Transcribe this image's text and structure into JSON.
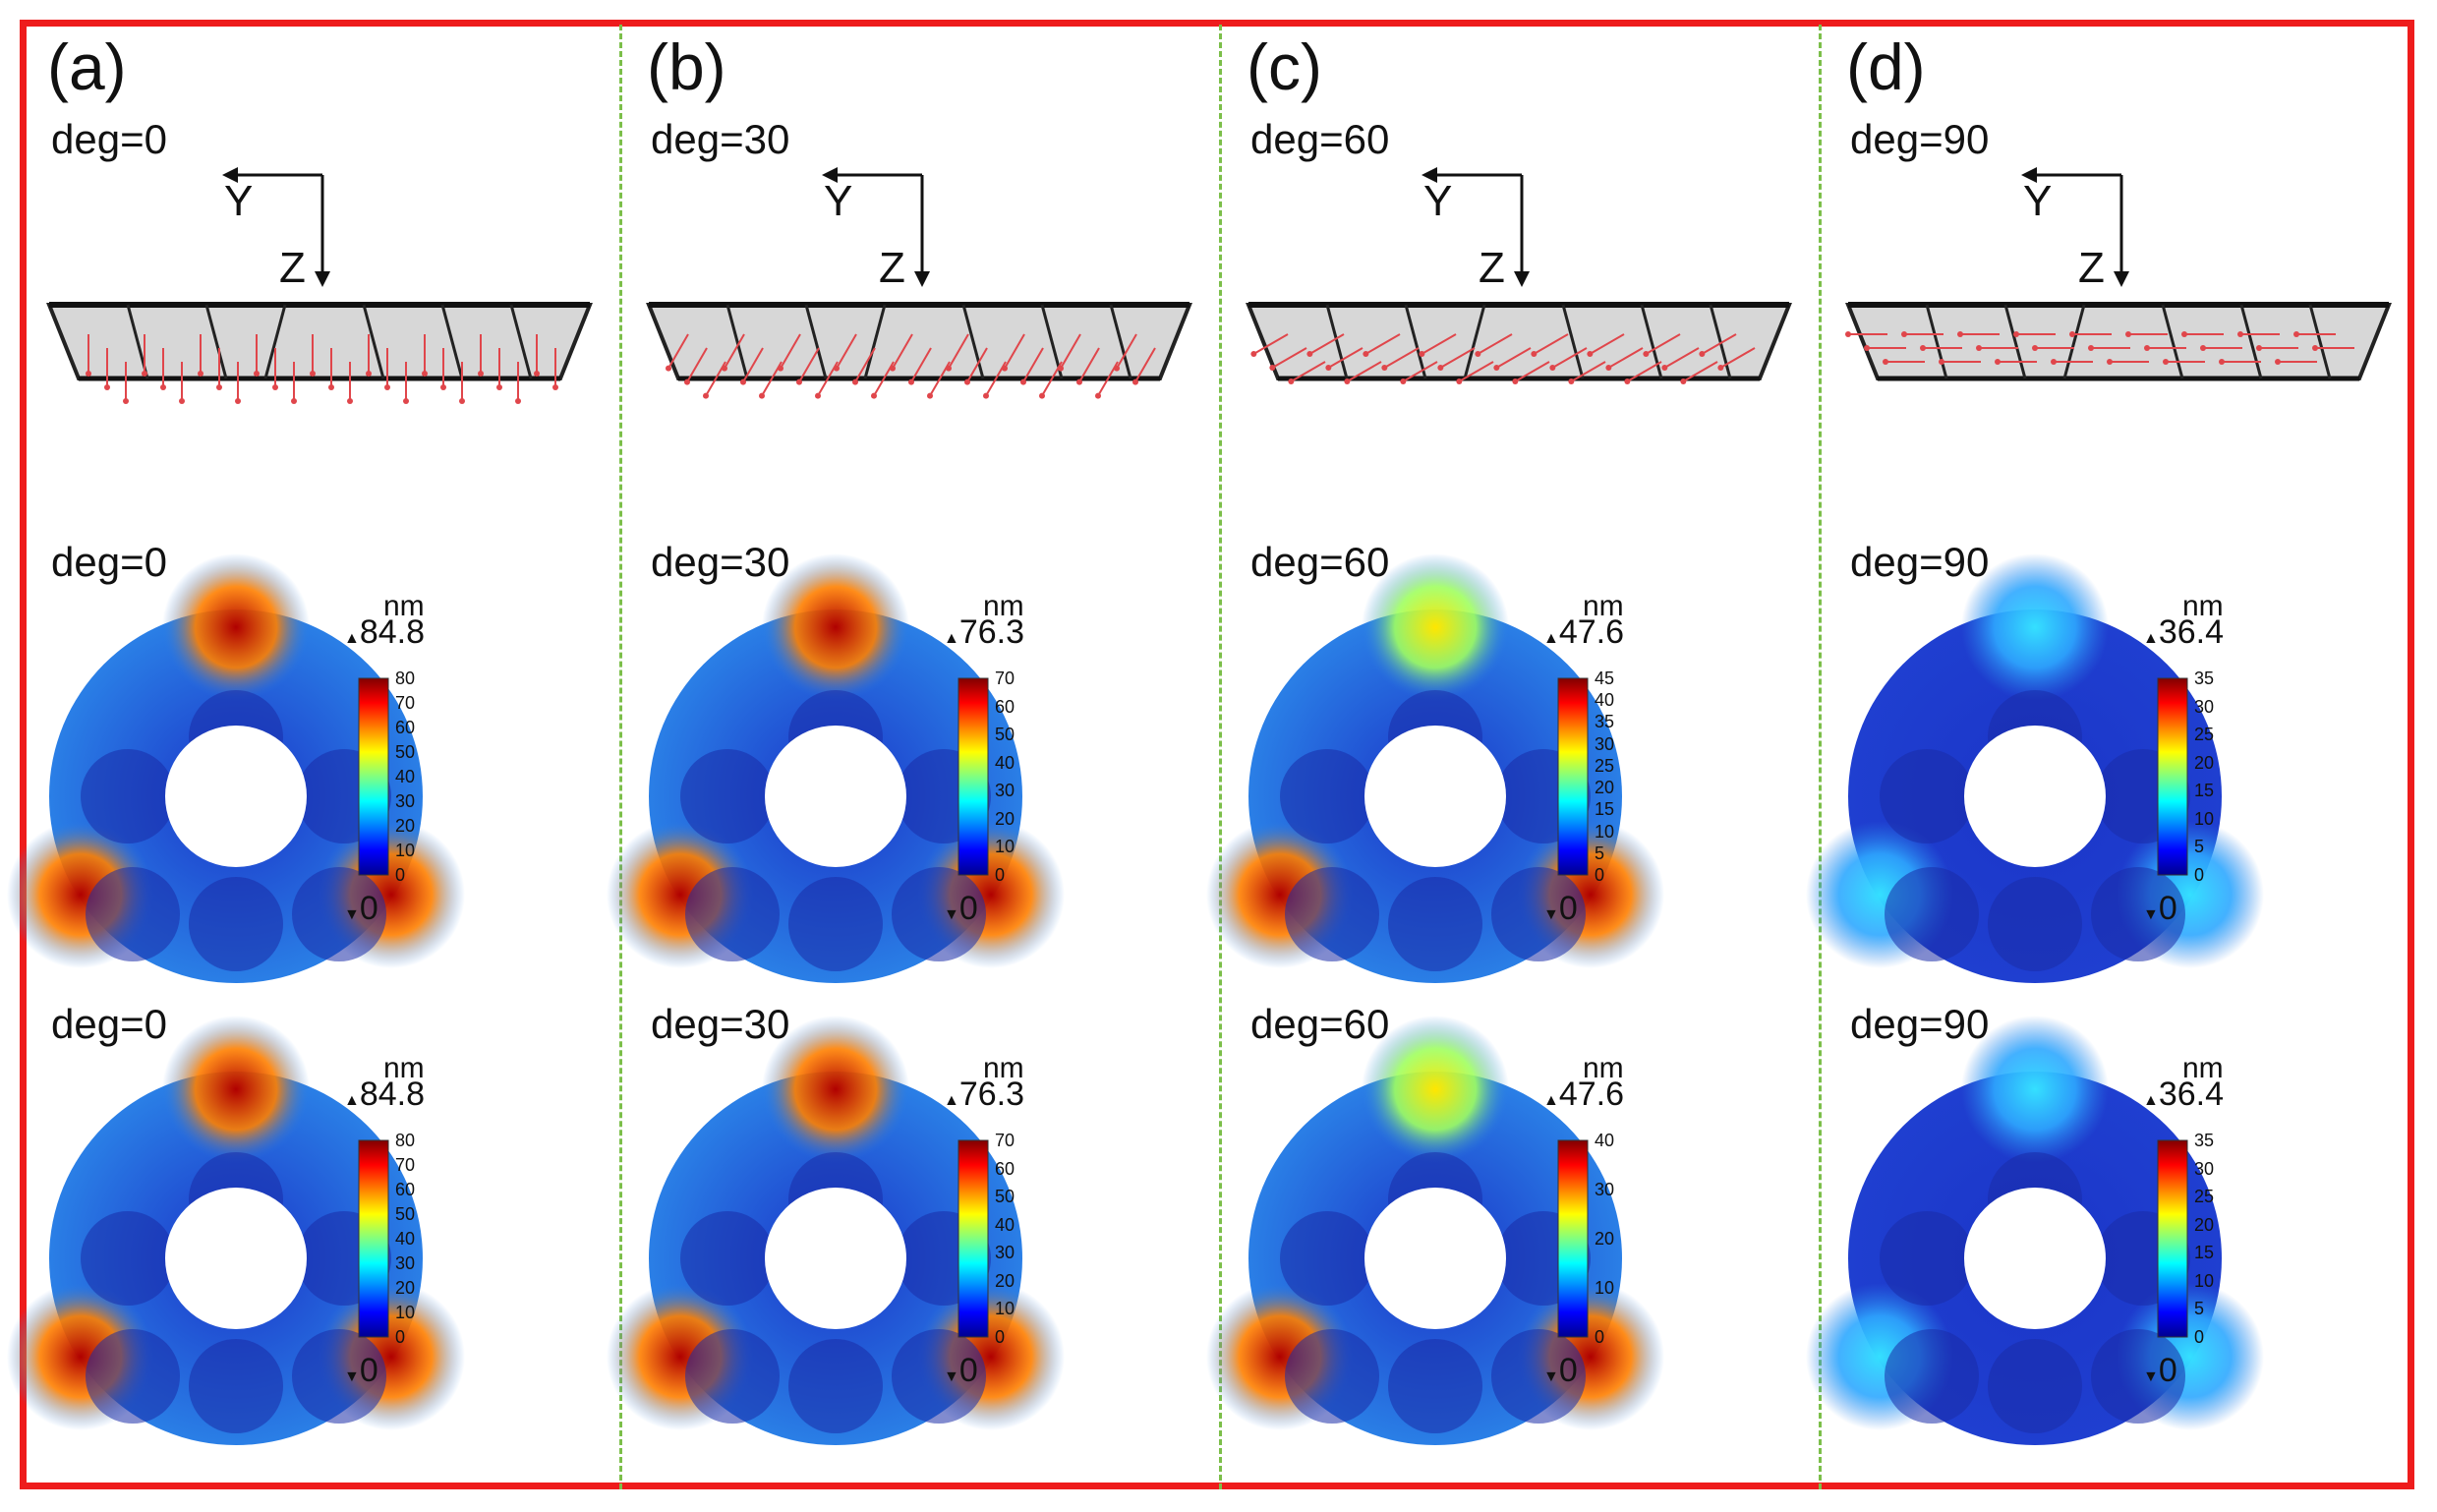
{
  "colors": {
    "frame": "#ee1c1c",
    "divider": "#7cbf4a",
    "arrow": "#e0464b",
    "jet_low": "#1a2fb5",
    "jet_high": "#b00000"
  },
  "axes": {
    "y": "Y",
    "z": "Z"
  },
  "unit": "nm",
  "panels": [
    {
      "label": "(a)",
      "deg": "deg=0",
      "max": "84.8",
      "min": "0",
      "hot": [
        1,
        1,
        1
      ],
      "ticks_mid": [
        "80",
        "70",
        "60",
        "50",
        "40",
        "30",
        "20",
        "10",
        "0"
      ],
      "ticks_bot": [
        "80",
        "70",
        "60",
        "50",
        "40",
        "30",
        "20",
        "10",
        "0"
      ]
    },
    {
      "label": "(b)",
      "deg": "deg=30",
      "max": "76.3",
      "min": "0",
      "hot": [
        0.92,
        0.9,
        0.9
      ],
      "ticks_mid": [
        "70",
        "60",
        "50",
        "40",
        "30",
        "20",
        "10",
        "0"
      ],
      "ticks_bot": [
        "70",
        "60",
        "50",
        "40",
        "30",
        "20",
        "10",
        "0"
      ]
    },
    {
      "label": "(c)",
      "deg": "deg=60",
      "max": "47.6",
      "min": "0",
      "hot": [
        0.6,
        0.95,
        0.95
      ],
      "ticks_mid": [
        "45",
        "40",
        "35",
        "30",
        "25",
        "20",
        "15",
        "10",
        "5",
        "0"
      ],
      "ticks_bot": [
        "40",
        "30",
        "20",
        "10",
        "0"
      ]
    },
    {
      "label": "(d)",
      "deg": "deg=90",
      "max": "36.4",
      "min": "0",
      "hot": [
        0.15,
        0.1,
        0.1
      ],
      "ticks_mid": [
        "35",
        "30",
        "25",
        "20",
        "15",
        "10",
        "5",
        "0"
      ],
      "ticks_bot": [
        "35",
        "30",
        "25",
        "20",
        "15",
        "10",
        "5",
        "0"
      ]
    }
  ]
}
